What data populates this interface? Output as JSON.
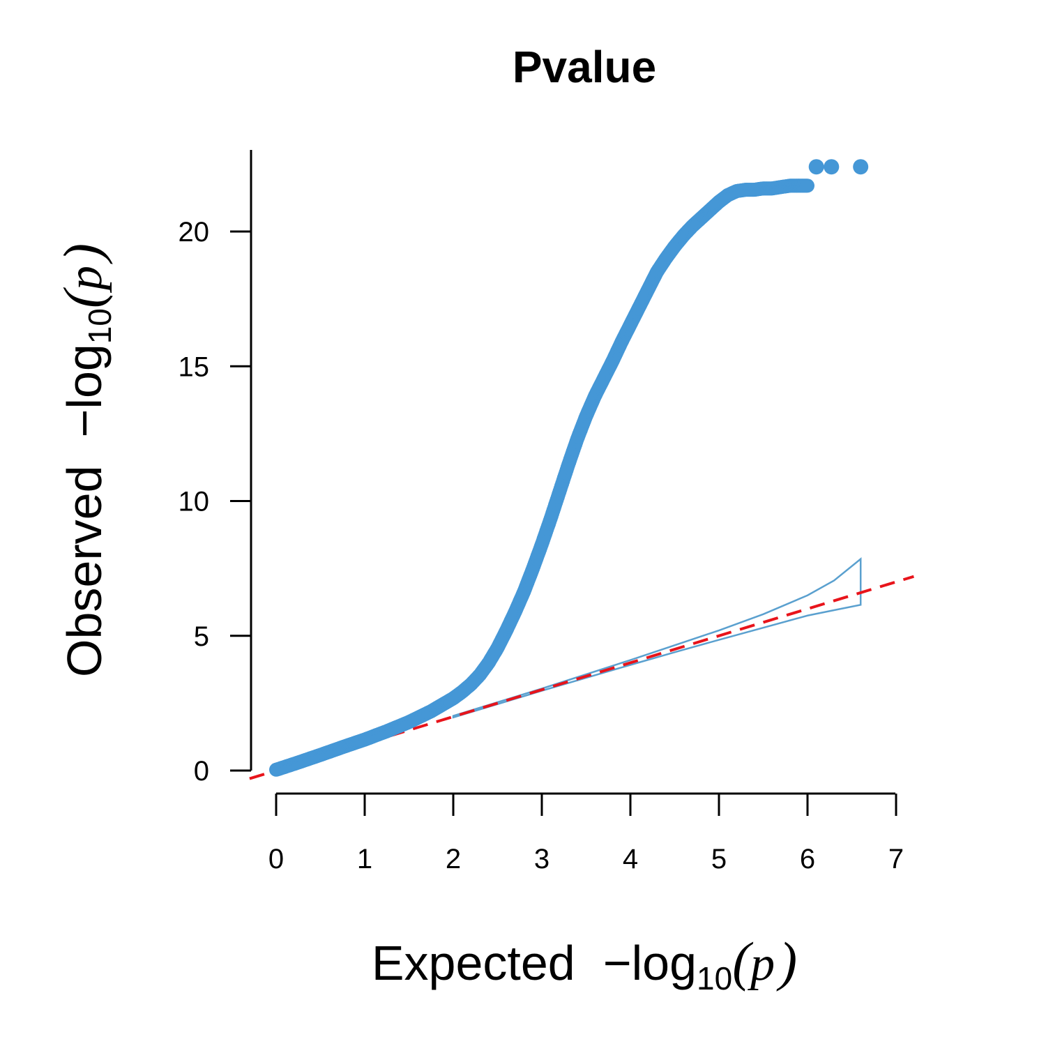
{
  "chart_data": {
    "type": "scatter",
    "title": "Pvalue",
    "xlabel": {
      "text": "Expected",
      "math": {
        "prefix": "−log",
        "subscript": "10",
        "open": "(",
        "variable": "p",
        "close": ")"
      }
    },
    "ylabel": {
      "text": "Observed",
      "math": {
        "prefix": "−log",
        "subscript": "10",
        "open": "(",
        "variable": "p",
        "close": ")"
      }
    },
    "xlim": [
      0,
      7
    ],
    "ylim": [
      0,
      22.4
    ],
    "x_ticks": [
      "0",
      "1",
      "2",
      "3",
      "4",
      "5",
      "6",
      "7"
    ],
    "y_ticks": [
      "0",
      "5",
      "10",
      "15",
      "20"
    ],
    "grid": false,
    "legend": null,
    "colors": {
      "points": "#4597d6",
      "reference_line": "#e8141b",
      "confidence_band": "#5aa0cf",
      "axes": "#000000"
    },
    "series": [
      {
        "kind": "points",
        "x": [
          0,
          0.25,
          0.5,
          0.75,
          1,
          1.25,
          1.5,
          1.75,
          2,
          2.1,
          2.2,
          2.3,
          2.4,
          2.5,
          2.6,
          2.7,
          2.8,
          2.9,
          3,
          3.1,
          3.2,
          3.3,
          3.4,
          3.5,
          3.6,
          3.7,
          3.8,
          3.9,
          4,
          4.1,
          4.2,
          4.3,
          4.4,
          4.5,
          4.6,
          4.7,
          4.8,
          4.9,
          5,
          5.1,
          5.2,
          5.3,
          5.4,
          5.5,
          5.6,
          5.7,
          5.8,
          5.9,
          6.0,
          6.1,
          6.27,
          6.6
        ],
        "y": [
          0.03,
          0.3,
          0.58,
          0.87,
          1.15,
          1.46,
          1.8,
          2.2,
          2.68,
          2.92,
          3.2,
          3.55,
          4.0,
          4.55,
          5.2,
          5.9,
          6.65,
          7.5,
          8.4,
          9.35,
          10.35,
          11.35,
          12.3,
          13.15,
          13.9,
          14.55,
          15.2,
          15.9,
          16.55,
          17.2,
          17.85,
          18.5,
          19.0,
          19.45,
          19.85,
          20.2,
          20.5,
          20.8,
          21.1,
          21.35,
          21.5,
          21.55,
          21.55,
          21.6,
          21.6,
          21.65,
          21.7,
          21.7,
          21.7,
          22.4,
          22.4,
          22.4
        ]
      },
      {
        "kind": "reference_line",
        "style": "dashed",
        "x": [
          -0.3,
          7.2
        ],
        "y": [
          -0.3,
          7.2
        ]
      },
      {
        "kind": "confidence_band",
        "upper": {
          "x": [
            2,
            3,
            4,
            4.5,
            5,
            5.5,
            6,
            6.3,
            6.6
          ],
          "y": [
            2.03,
            3.04,
            4.1,
            4.65,
            5.2,
            5.8,
            6.5,
            7.05,
            7.85
          ]
        },
        "lower": {
          "x": [
            2,
            3,
            4,
            4.5,
            5,
            5.5,
            6,
            6.3,
            6.6
          ],
          "y": [
            1.97,
            2.96,
            3.92,
            4.39,
            4.85,
            5.3,
            5.75,
            5.95,
            6.15
          ]
        }
      }
    ]
  }
}
